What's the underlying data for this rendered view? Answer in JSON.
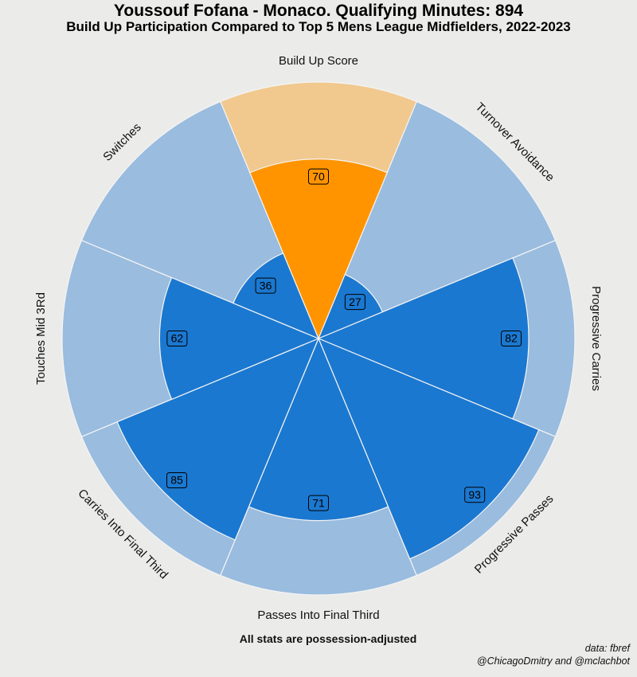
{
  "header": {
    "title": "Youssouf Fofana - Monaco. Qualifying Minutes: 894",
    "subtitle": "Build Up Participation Compared to Top 5 Mens League Midfielders, 2022-2023"
  },
  "chart_data": {
    "type": "pizza",
    "title": "Youssouf Fofana - Monaco. Qualifying Minutes: 894",
    "subtitle": "Build Up Participation Compared to Top 5 Mens League Midfielders, 2022-2023",
    "value_max": 100,
    "categories": [
      "Build Up Score",
      "Turnover Avoidance",
      "Progressive Carries",
      "Progressive Passes",
      "Passes Into Final Third",
      "Carries Into Final Third",
      "Touches Mid 3Rd",
      "Switches"
    ],
    "values": [
      70,
      27,
      82,
      93,
      71,
      85,
      62,
      36
    ],
    "highlight_index": 0
  },
  "colors": {
    "background": "#ebebe9",
    "slice": "#1b78d0",
    "slice_bg": "#99bcdf",
    "highlight": "#ff9400",
    "highlight_bg": "#f1c88e",
    "edge": "#f4f4f4"
  },
  "footer": {
    "note": "All stats are possession-adjusted",
    "source": "data: fbref",
    "credit": "@ChicagoDmitry and @mclachbot"
  }
}
